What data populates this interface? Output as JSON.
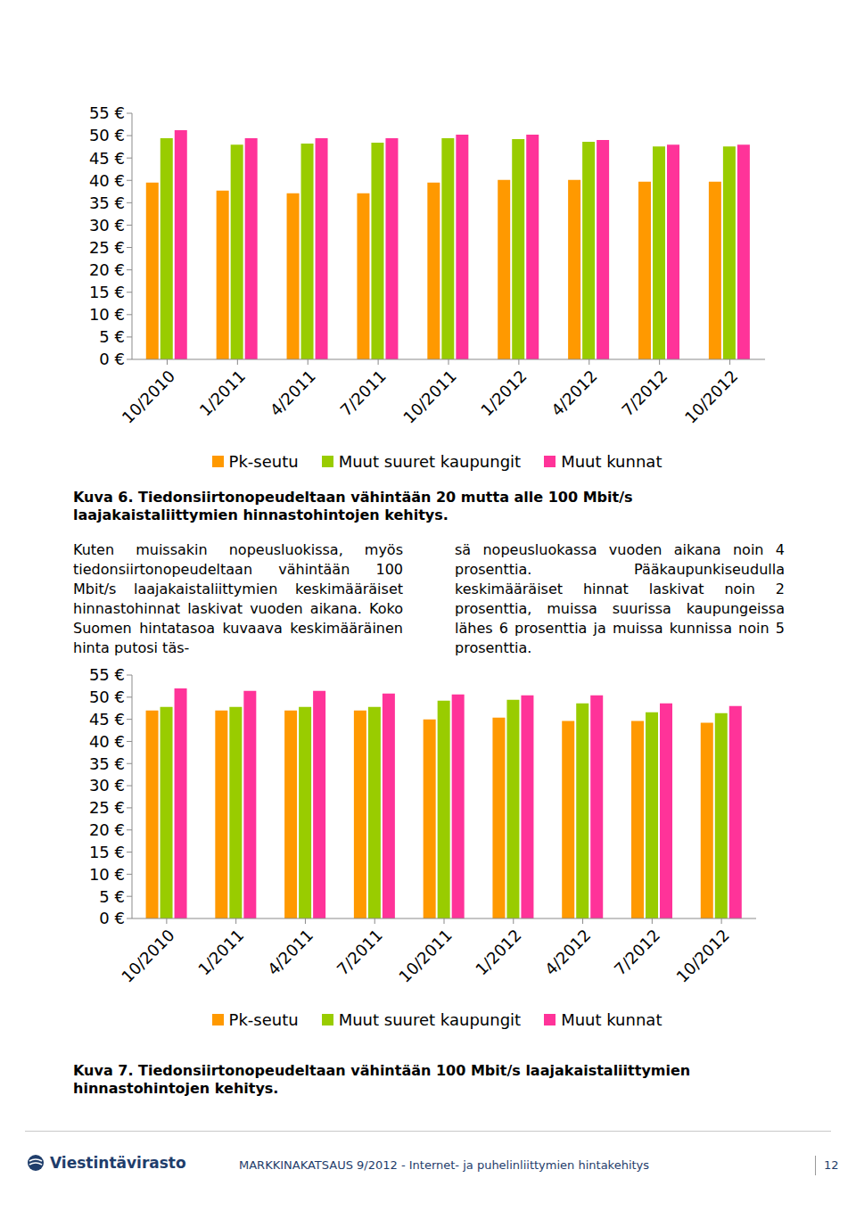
{
  "chart_data": [
    {
      "type": "bar",
      "title": "Kuva 6. Tiedonsiirtonopeudeltaan vähintään 20 mutta alle 100 Mbit/s laajakaistaliittymien hinnastohintojen kehitys.",
      "categories": [
        "10/2010",
        "1/2011",
        "4/2011",
        "7/2011",
        "10/2011",
        "1/2012",
        "4/2012",
        "7/2012",
        "10/2012"
      ],
      "series": [
        {
          "name": "Pk-seutu",
          "color": "#ff9900",
          "values": [
            39.5,
            37.7,
            37.1,
            37.1,
            39.5,
            40.1,
            40.1,
            39.7,
            39.7
          ]
        },
        {
          "name": "Muut suuret kaupungit",
          "color": "#99cc00",
          "values": [
            49.4,
            48.0,
            48.2,
            48.4,
            49.4,
            49.2,
            48.6,
            47.6,
            47.6
          ]
        },
        {
          "name": "Muut kunnat",
          "color": "#ff3399",
          "values": [
            51.2,
            49.4,
            49.4,
            49.4,
            50.2,
            50.2,
            49.0,
            48.0,
            48.0
          ]
        }
      ],
      "ylim": [
        0,
        55
      ],
      "yticks": [
        {
          "value": 0,
          "label": "0 €"
        },
        {
          "value": 5,
          "label": "5 €"
        },
        {
          "value": 10,
          "label": "10 €"
        },
        {
          "value": 15,
          "label": "15 €"
        },
        {
          "value": 20,
          "label": "20 €"
        },
        {
          "value": 25,
          "label": "25 €"
        },
        {
          "value": 30,
          "label": "30 €"
        },
        {
          "value": 35,
          "label": "35 €"
        },
        {
          "value": 40,
          "label": "40 €"
        },
        {
          "value": 45,
          "label": "45 €"
        },
        {
          "value": 50,
          "label": "50 €"
        },
        {
          "value": 55,
          "label": "55 €"
        }
      ],
      "grid": false,
      "legend": "bottom"
    },
    {
      "type": "bar",
      "title": "Kuva 7. Tiedonsiirtonopeudeltaan vähintään 100 Mbit/s laajakaistaliittymien hinnastohintojen kehitys.",
      "categories": [
        "10/2010",
        "1/2011",
        "4/2011",
        "7/2011",
        "10/2011",
        "1/2012",
        "4/2012",
        "7/2012",
        "10/2012"
      ],
      "series": [
        {
          "name": "Pk-seutu",
          "color": "#ff9900",
          "values": [
            47.0,
            47.0,
            47.0,
            47.0,
            45.0,
            45.4,
            44.6,
            44.6,
            44.2
          ]
        },
        {
          "name": "Muut suuret kaupungit",
          "color": "#99cc00",
          "values": [
            47.8,
            47.8,
            47.8,
            47.8,
            49.2,
            49.4,
            48.6,
            46.6,
            46.4
          ]
        },
        {
          "name": "Muut kunnat",
          "color": "#ff3399",
          "values": [
            52.0,
            51.4,
            51.4,
            50.8,
            50.6,
            50.4,
            50.4,
            48.6,
            48.0
          ]
        }
      ],
      "ylim": [
        0,
        55
      ],
      "yticks": [
        {
          "value": 0,
          "label": "0 €"
        },
        {
          "value": 5,
          "label": "5 €"
        },
        {
          "value": 10,
          "label": "10 €"
        },
        {
          "value": 15,
          "label": "15 €"
        },
        {
          "value": 20,
          "label": "20 €"
        },
        {
          "value": 25,
          "label": "25 €"
        },
        {
          "value": 30,
          "label": "30 €"
        },
        {
          "value": 35,
          "label": "35 €"
        },
        {
          "value": 40,
          "label": "40 €"
        },
        {
          "value": 45,
          "label": "45 €"
        },
        {
          "value": 50,
          "label": "50 €"
        },
        {
          "value": 55,
          "label": "55 €"
        }
      ],
      "grid": false,
      "legend": "bottom"
    }
  ],
  "body": {
    "columns": [
      "Kuten muissakin nopeusluokissa, myös tiedonsiirtonopeudeltaan vähintään 100 Mbit/s laajakaistaliittymien keskimääräiset hinnastohinnat laskivat vuoden aikana. Koko Suomen hintatasoa kuvaava keskimääräinen hinta putosi täs-",
      "sä nopeusluokassa vuoden aikana noin 4 prosenttia. Pääkaupunkiseudulla keskimääräiset hinnat laskivat noin 2 prosenttia, muissa suurissa kaupungeissa lähes 6 prosenttia ja muissa kunnissa noin 5 prosenttia."
    ]
  },
  "footer": {
    "logo": "Viestintävirasto",
    "text": "MARKKINAKATSAUS 9/2012 - Internet- ja puhelinliittymien hintakehitys",
    "page": "12"
  }
}
